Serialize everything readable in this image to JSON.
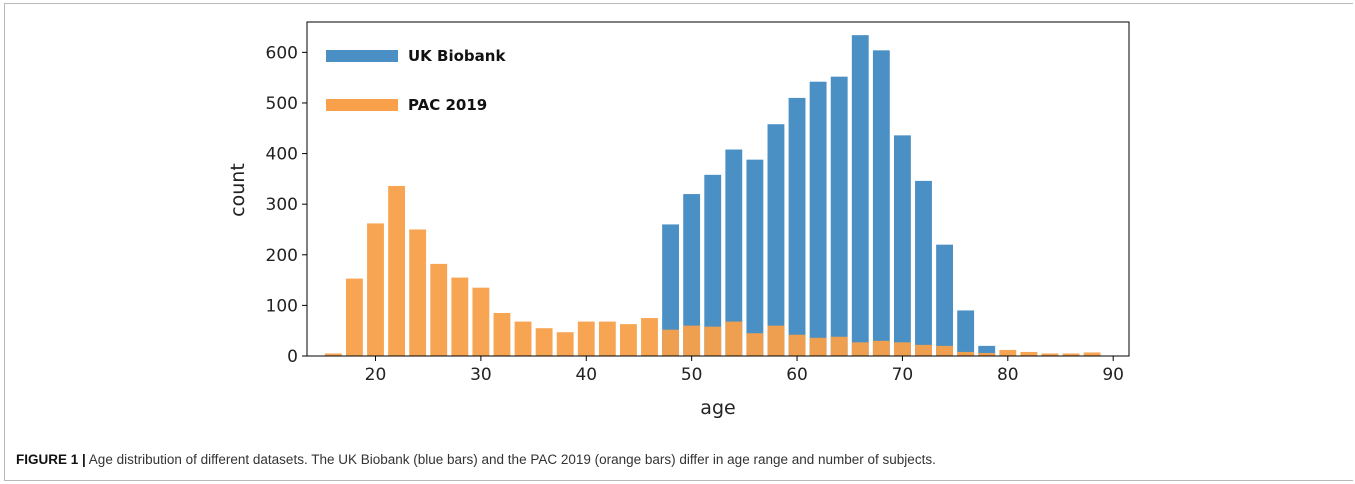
{
  "caption": {
    "label": "FIGURE 1 |",
    "text": " Age distribution of different datasets. The UK Biobank (blue bars) and the PAC 2019 (orange bars) differ in age range and number of subjects."
  },
  "chart_data": {
    "type": "bar",
    "title": "",
    "xlabel": "age",
    "ylabel": "count",
    "xlim": [
      13.5,
      91.5
    ],
    "ylim": [
      0,
      660
    ],
    "xticks": [
      20,
      30,
      40,
      50,
      60,
      70,
      80,
      90
    ],
    "yticks": [
      0,
      100,
      200,
      300,
      400,
      500,
      600
    ],
    "grid": false,
    "legend_position": "top-left",
    "series": [
      {
        "name": "UK Biobank",
        "color": "#4a90c4",
        "x": [
          48,
          50,
          52,
          54,
          56,
          58,
          60,
          62,
          64,
          66,
          68,
          70,
          72,
          74,
          76,
          78
        ],
        "values": [
          260,
          320,
          358,
          408,
          388,
          458,
          510,
          542,
          552,
          634,
          604,
          436,
          346,
          220,
          90,
          20
        ]
      },
      {
        "name": "PAC 2019",
        "color": "#f8a04a",
        "x": [
          16,
          18,
          20,
          22,
          24,
          26,
          28,
          30,
          32,
          34,
          36,
          38,
          40,
          42,
          44,
          46,
          48,
          50,
          52,
          54,
          56,
          58,
          60,
          62,
          64,
          66,
          68,
          70,
          72,
          74,
          76,
          78,
          80,
          82,
          84,
          86,
          88
        ],
        "values": [
          5,
          153,
          262,
          336,
          250,
          182,
          155,
          135,
          85,
          68,
          55,
          47,
          68,
          68,
          63,
          75,
          52,
          60,
          58,
          68,
          45,
          60,
          42,
          36,
          38,
          27,
          30,
          27,
          22,
          20,
          8,
          6,
          12,
          8,
          5,
          5,
          7
        ]
      }
    ]
  }
}
